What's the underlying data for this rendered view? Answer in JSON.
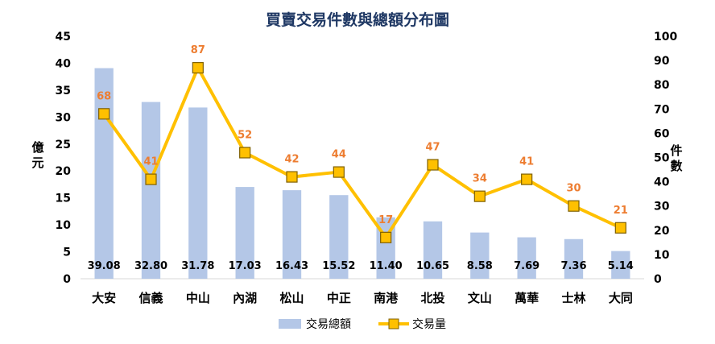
{
  "chart_data": {
    "type": "bar+line",
    "title": "買賣交易件數與總額分布圖",
    "categories": [
      "大安",
      "信義",
      "中山",
      "內湖",
      "松山",
      "中正",
      "南港",
      "北投",
      "文山",
      "萬華",
      "士林",
      "大同"
    ],
    "series": [
      {
        "name": "交易總額",
        "type": "bar",
        "axis": "left",
        "values": [
          39.08,
          32.8,
          31.78,
          17.03,
          16.43,
          15.52,
          11.4,
          10.65,
          8.58,
          7.69,
          7.36,
          5.14
        ],
        "labels": [
          "39.08",
          "32.80",
          "31.78",
          "17.03",
          "16.43",
          "15.52",
          "11.40",
          "10.65",
          "8.58",
          "7.69",
          "7.36",
          "5.14"
        ],
        "color": "#b4c7e7"
      },
      {
        "name": "交易量",
        "type": "line",
        "axis": "right",
        "values": [
          68,
          41,
          87,
          52,
          42,
          44,
          17,
          47,
          34,
          41,
          30,
          21
        ],
        "labels": [
          "68",
          "41",
          "87",
          "52",
          "42",
          "44",
          "17",
          "47",
          "34",
          "41",
          "30",
          "21"
        ],
        "line_color": "#ffc000",
        "label_color": "#ed7d31"
      }
    ],
    "yleft": {
      "label": "億元",
      "ylim": [
        0,
        45
      ],
      "ticks": [
        "0",
        "5",
        "10",
        "15",
        "20",
        "25",
        "30",
        "35",
        "40",
        "45"
      ]
    },
    "yright": {
      "label": "件數",
      "ylim": [
        0,
        100
      ],
      "ticks": [
        "0",
        "10",
        "20",
        "30",
        "40",
        "50",
        "60",
        "70",
        "80",
        "90",
        "100"
      ]
    },
    "grid": false,
    "legend_position": "bottom-center",
    "title_color": "#1f3864"
  }
}
